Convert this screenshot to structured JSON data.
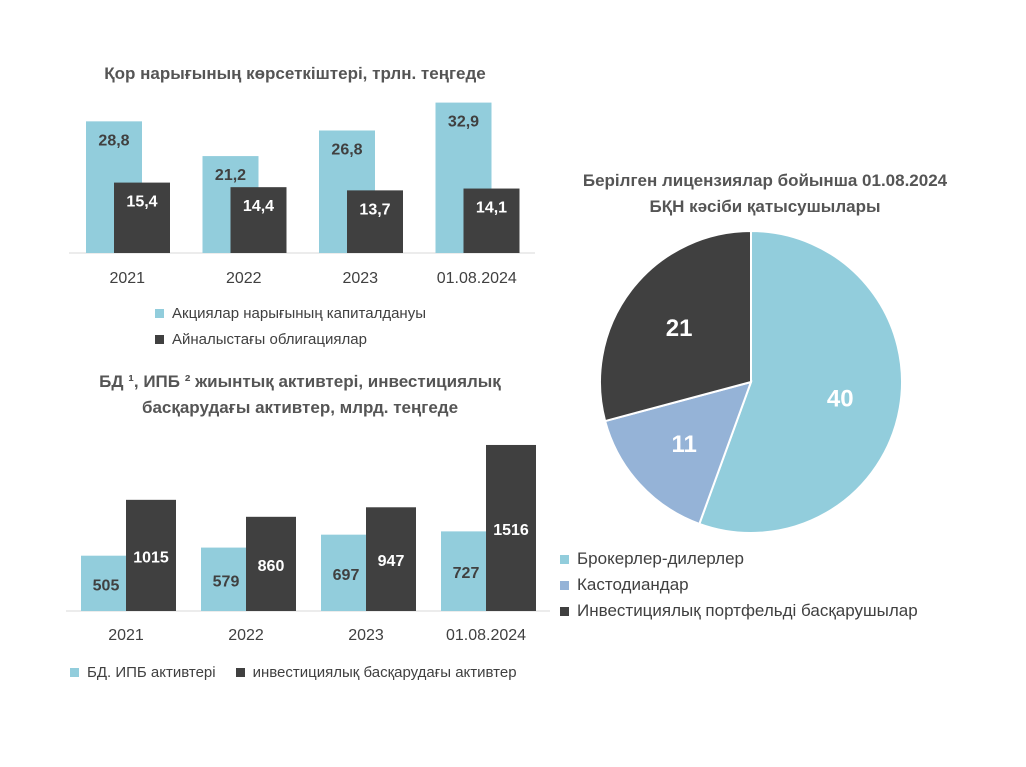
{
  "colors": {
    "light": "#92CDDC",
    "dark": "#404040",
    "mid": "#95B3D7"
  },
  "chart_data": [
    {
      "type": "bar",
      "title": "Қор нарығының көрсеткіштері, трлн. теңгеде",
      "categories": [
        "2021",
        "2022",
        "2023",
        "01.08.2024"
      ],
      "ylim": [
        0,
        35
      ],
      "series": [
        {
          "name": "Акциялар нарығының капиталдануы",
          "values": [
            28.8,
            21.2,
            26.8,
            32.9
          ],
          "labels": [
            "28,8",
            "21,2",
            "26,8",
            "32,9"
          ]
        },
        {
          "name": "Айналыстағы облигациялар",
          "values": [
            15.4,
            14.4,
            13.7,
            14.1
          ],
          "labels": [
            "15,4",
            "14,4",
            "13,7",
            "14,1"
          ]
        }
      ],
      "grid": false,
      "legend": "bottom"
    },
    {
      "type": "bar",
      "title_lines": [
        "БД ¹, ИПБ ² жиынтық активтері, инвестициялық",
        "басқарудағы активтер, млрд. теңгеде"
      ],
      "categories": [
        "2021",
        "2022",
        "2023",
        "01.08.2024"
      ],
      "ylim": [
        0,
        1680
      ],
      "series": [
        {
          "name": "БД. ИПБ активтері",
          "values": [
            505,
            579,
            697,
            727
          ],
          "labels": [
            "505",
            "579",
            "697",
            "727"
          ]
        },
        {
          "name": "инвестициялық басқарудағы активтер",
          "values": [
            1015,
            860,
            947,
            1516
          ],
          "labels": [
            "1015",
            "860",
            "947",
            "1516"
          ]
        }
      ],
      "grid": false,
      "legend": "bottom"
    },
    {
      "type": "pie",
      "title_lines": [
        "Берілген лицензиялар бойынша 01.08.2024",
        "БҚН кәсіби қатысушылары"
      ],
      "slices": [
        {
          "name": "Брокерлер-дилерлер",
          "value": 40,
          "label": "40"
        },
        {
          "name": "Кастодиандар",
          "value": 11,
          "label": "11"
        },
        {
          "name": "Инвестициялық портфельді басқарушылар",
          "value": 21,
          "label": "21"
        }
      ],
      "legend": "bottom"
    }
  ]
}
